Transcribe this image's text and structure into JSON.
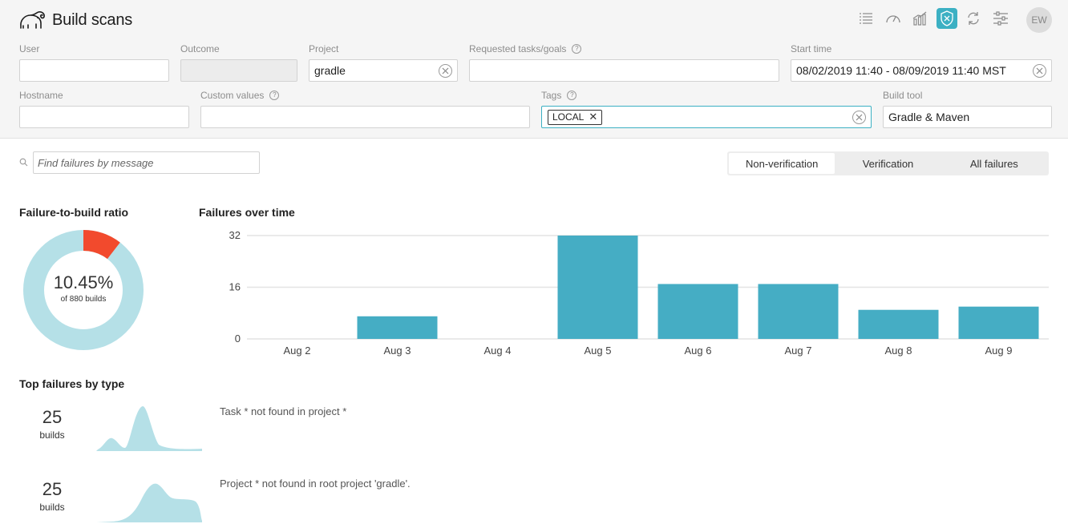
{
  "app": {
    "title": "Build scans",
    "avatar": "EW"
  },
  "nav_icons": [
    "list-icon",
    "gauge-icon",
    "trends-icon",
    "failures-icon",
    "refresh-icon",
    "settings-sliders-icon"
  ],
  "filters": {
    "user": {
      "label": "User",
      "value": ""
    },
    "outcome": {
      "label": "Outcome",
      "value": ""
    },
    "project": {
      "label": "Project",
      "value": "gradle"
    },
    "requested_tasks": {
      "label": "Requested tasks/goals",
      "value": ""
    },
    "start_time": {
      "label": "Start time",
      "value": "08/02/2019 11:40 - 08/09/2019 11:40 MST"
    },
    "hostname": {
      "label": "Hostname",
      "value": ""
    },
    "custom_values": {
      "label": "Custom values",
      "value": ""
    },
    "tags": {
      "label": "Tags",
      "chips": [
        "LOCAL"
      ]
    },
    "build_tool": {
      "label": "Build tool",
      "value": "Gradle & Maven"
    }
  },
  "search": {
    "placeholder": "Find failures by message"
  },
  "segmented": {
    "options": [
      "Non-verification",
      "Verification",
      "All failures"
    ],
    "selected": "Non-verification"
  },
  "ratio": {
    "title": "Failure-to-build ratio",
    "percent_text": "10.45%",
    "sub_text": "of 880 builds",
    "fraction": 0.1045,
    "fail_color": "#f24a2d",
    "ok_color": "#b5e0e7"
  },
  "chart_data": {
    "type": "bar",
    "title": "Failures over time",
    "categories": [
      "Aug 2",
      "Aug 3",
      "Aug 4",
      "Aug 5",
      "Aug 6",
      "Aug 7",
      "Aug 8",
      "Aug 9"
    ],
    "values": [
      0,
      7,
      0,
      32,
      17,
      17,
      9,
      10
    ],
    "yticks": [
      0,
      16,
      32
    ],
    "ylim": [
      0,
      32
    ],
    "grid": true,
    "color": "#45adc4"
  },
  "top_failures": {
    "title": "Top failures by type",
    "items": [
      {
        "count": "25",
        "unit": "builds",
        "message": "Task * not found in project *"
      },
      {
        "count": "25",
        "unit": "builds",
        "message": "Project * not found in root project 'gradle'."
      }
    ]
  }
}
